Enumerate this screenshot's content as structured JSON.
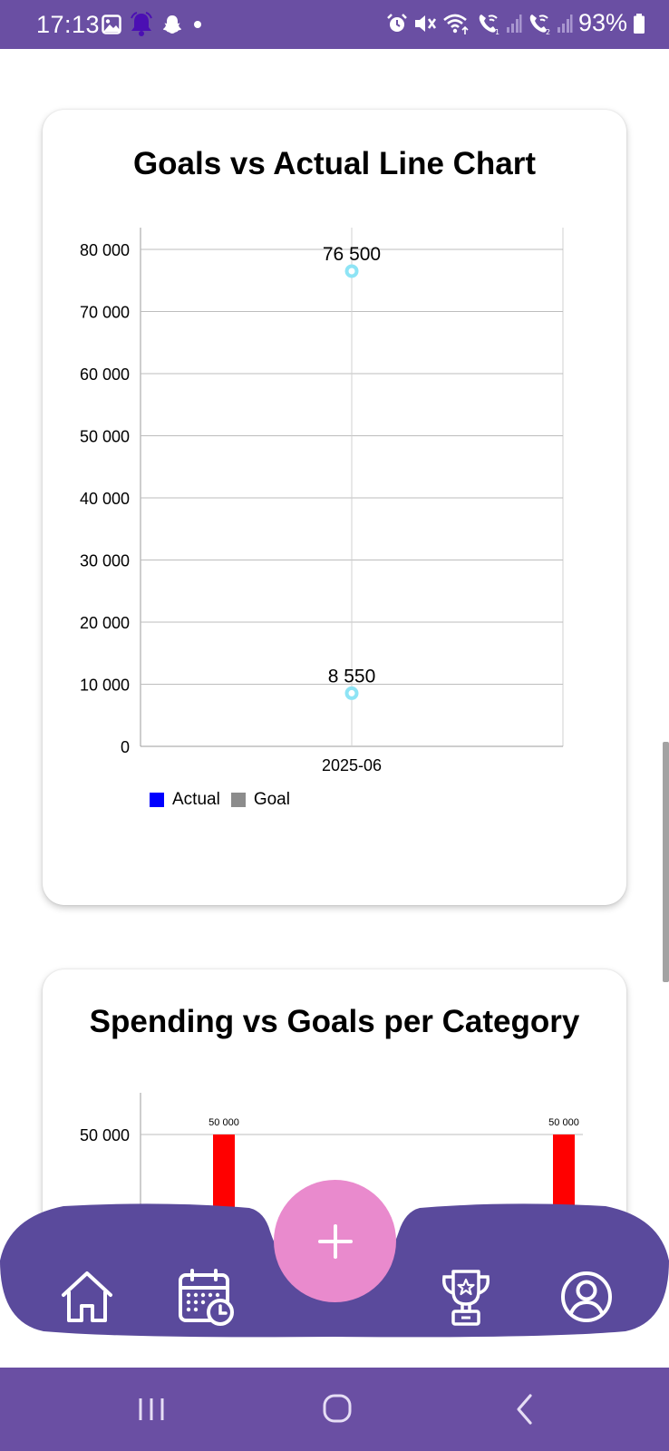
{
  "status_bar": {
    "time": "17:13",
    "battery": "93%",
    "left_icons": [
      "gallery-icon",
      "notification-bell-icon",
      "snapchat-icon",
      "dot-icon"
    ],
    "right_icons": [
      "alarm-icon",
      "mute-icon",
      "wifi-icon",
      "wifi-call-1-icon",
      "signal-1-icon",
      "wifi-call-2-icon",
      "signal-2-icon",
      "battery-icon"
    ]
  },
  "card1": {
    "title": "Goals vs Actual Line Chart",
    "chart_data": {
      "type": "line",
      "categories": [
        "2025-06"
      ],
      "series": [
        {
          "name": "Actual",
          "values": [
            8550
          ],
          "data_labels": [
            "8 550"
          ],
          "color": "#0000ff"
        },
        {
          "name": "Goal",
          "values": [
            76500
          ],
          "data_labels": [
            "76 500"
          ],
          "color": "#8c8c8c"
        }
      ],
      "point_color": "#8ee4f5",
      "ylim": [
        0,
        80000
      ],
      "yticks": [
        0,
        10000,
        20000,
        30000,
        40000,
        50000,
        60000,
        70000,
        80000
      ],
      "ytick_labels": [
        "0",
        "10 000",
        "20 000",
        "30 000",
        "40 000",
        "50 000",
        "60 000",
        "70 000",
        "80 000"
      ],
      "grid": true,
      "legend_position": "bottom-left"
    }
  },
  "card2": {
    "title": "Spending vs Goals per Category",
    "chart_data": {
      "type": "bar",
      "visible_bars": [
        {
          "value": 50000,
          "label": "50 000",
          "color": "#ff0000"
        },
        {
          "value": 50000,
          "label": "50 000",
          "color": "#ff0000"
        }
      ],
      "yticks_visible": [
        50000
      ],
      "ytick_labels_visible": [
        "50 000"
      ]
    }
  },
  "bottom_nav": {
    "items": [
      "home-icon",
      "calendar-icon",
      "add-icon",
      "trophy-icon",
      "profile-icon"
    ],
    "fab_label": "+",
    "bar_color": "#5a4a9c",
    "fab_color": "#e98acd"
  },
  "system_nav": [
    "recents-icon",
    "home-circle-icon",
    "back-icon"
  ]
}
